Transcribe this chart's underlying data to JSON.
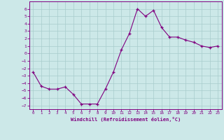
{
  "x": [
    0,
    1,
    2,
    3,
    4,
    5,
    6,
    7,
    8,
    9,
    10,
    11,
    12,
    13,
    14,
    15,
    16,
    17,
    18,
    19,
    20,
    21,
    22,
    23
  ],
  "y": [
    -2.5,
    -4.4,
    -4.8,
    -4.8,
    -4.5,
    -5.5,
    -6.8,
    -6.8,
    -6.8,
    -4.8,
    -2.5,
    0.5,
    2.7,
    6.0,
    5.0,
    5.8,
    3.5,
    2.2,
    2.2,
    1.8,
    1.5,
    1.0,
    0.8,
    1.0
  ],
  "line_color": "#800080",
  "marker": "+",
  "bg_color": "#cce8e8",
  "grid_color": "#a8cccc",
  "ylabel_ticks": [
    6,
    5,
    4,
    3,
    2,
    1,
    0,
    -1,
    -2,
    -3,
    -4,
    -5,
    -6,
    -7
  ],
  "xlabel": "Windchill (Refroidissement éolien,°C)",
  "xlim": [
    -0.5,
    23.5
  ],
  "ylim": [
    -7.5,
    7.0
  ],
  "xtick_labels": [
    "0",
    "1",
    "2",
    "3",
    "4",
    "5",
    "6",
    "7",
    "8",
    "9",
    "10",
    "11",
    "12",
    "13",
    "14",
    "15",
    "16",
    "17",
    "18",
    "19",
    "20",
    "21",
    "22",
    "23"
  ]
}
